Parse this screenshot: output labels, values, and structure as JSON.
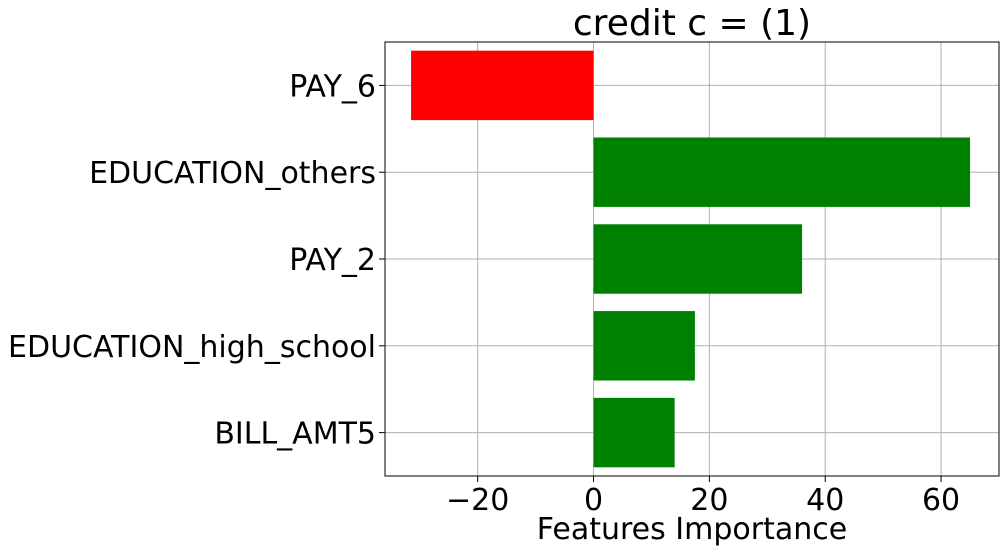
{
  "chart_data": {
    "type": "bar",
    "orientation": "horizontal",
    "title": "credit c = (1)",
    "xlabel": "Features Importance",
    "ylabel": "",
    "categories": [
      "PAY_6",
      "EDUCATION_others",
      "PAY_2",
      "EDUCATION_high_school",
      "BILL_AMT5"
    ],
    "values": [
      -31.5,
      65.0,
      36.0,
      17.5,
      14.0
    ],
    "xlim": [
      -36,
      70
    ],
    "xticks": [
      -20,
      0,
      20,
      40,
      60
    ],
    "xtick_labels": [
      "−20",
      "0",
      "20",
      "40",
      "60"
    ],
    "grid": true,
    "colors": {
      "positive": "#008000",
      "negative": "#ff0000",
      "grid": "#b0b0b0",
      "axis": "#000000"
    }
  }
}
